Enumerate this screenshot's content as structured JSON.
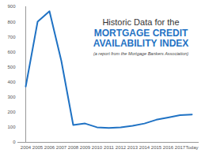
{
  "chart_data": {
    "type": "line",
    "title": "Historic Data for the",
    "subtitle": "MORTGAGE CREDIT AVAILABILITY INDEX",
    "annotations": [
      "(a report from the Mortgage Bankers Association)"
    ],
    "categories": [
      "2004",
      "2005",
      "2006",
      "2007",
      "2008",
      "2009",
      "2010",
      "2011",
      "2012",
      "2013",
      "2014",
      "2015",
      "2016",
      "2017",
      "Today"
    ],
    "values": [
      370,
      800,
      870,
      540,
      115,
      125,
      100,
      95,
      100,
      110,
      125,
      150,
      165,
      180,
      185
    ],
    "color": "#1f72c4",
    "ylim": [
      0,
      900
    ],
    "yticks": [
      0,
      100,
      200,
      300,
      400,
      500,
      600,
      700,
      800,
      900
    ],
    "grid": false
  }
}
